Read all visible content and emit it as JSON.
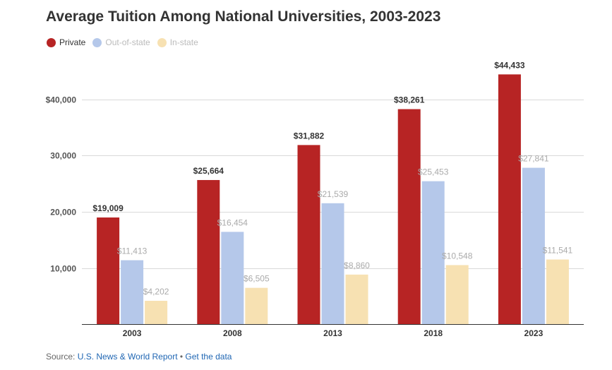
{
  "chart_data": {
    "type": "bar",
    "title": "Average Tuition Among National Universities, 2003-2023",
    "categories": [
      "2003",
      "2008",
      "2013",
      "2018",
      "2023"
    ],
    "series": [
      {
        "name": "Private",
        "color": "#b72424",
        "values": [
          19009,
          25664,
          31882,
          38261,
          44433
        ],
        "labels": [
          "$19,009",
          "$25,664",
          "$31,882",
          "$38,261",
          "$44,433"
        ]
      },
      {
        "name": "Out-of-state",
        "color": "#b5c8ea",
        "values": [
          11413,
          16454,
          21539,
          25453,
          27841
        ],
        "labels": [
          "$11,413",
          "$16,454",
          "$21,539",
          "$25,453",
          "$27,841"
        ]
      },
      {
        "name": "In-state",
        "color": "#f7e1b2",
        "values": [
          4202,
          6505,
          8860,
          10548,
          11541
        ],
        "labels": [
          "$4,202",
          "$6,505",
          "$8,860",
          "$10,548",
          "$11,541"
        ]
      }
    ],
    "yticks": [
      10000,
      20000,
      30000,
      40000
    ],
    "ytick_labels": [
      "10,000",
      "20,000",
      "30,000",
      "$40,000"
    ],
    "ylim": [
      0,
      40000
    ],
    "grid": true,
    "legend_position": "top-left"
  },
  "source": {
    "prefix": "Source: ",
    "link_label": "U.S. News & World Report",
    "separator": " • ",
    "data_link_label": "Get the data"
  }
}
